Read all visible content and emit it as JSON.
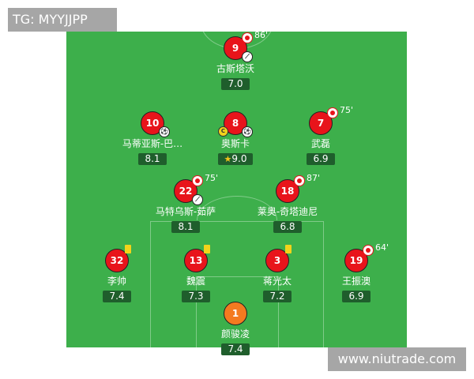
{
  "watermarks": {
    "top_left": "TG: MYYJJPP",
    "bottom_right": "www.niutrade.com"
  },
  "colors": {
    "pitch": "#3daf4b",
    "outfield": "#e8141b",
    "goalkeeper": "#f47a20",
    "rating_bg": "#1f5e2c"
  },
  "players": [
    {
      "number": "9",
      "name": "古斯塔沃",
      "rating": "7.0",
      "sub_off": "86'",
      "events": [
        "sub-off",
        "assist"
      ]
    },
    {
      "number": "10",
      "name": "马蒂亚斯-巴…",
      "rating": "8.1",
      "events": [
        "goal"
      ]
    },
    {
      "number": "8",
      "name": "奥斯卡",
      "rating": "9.0",
      "captain": "C",
      "motm": true,
      "events": [
        "goal"
      ]
    },
    {
      "number": "7",
      "name": "武磊",
      "rating": "6.9",
      "sub_off": "75'",
      "events": [
        "sub-off"
      ]
    },
    {
      "number": "22",
      "name": "马特乌斯-茹萨",
      "rating": "8.1",
      "sub_off": "75'",
      "events": [
        "sub-off",
        "assist"
      ]
    },
    {
      "number": "18",
      "name": "莱奥-奇塔迪尼",
      "rating": "6.8",
      "sub_off": "87'",
      "events": [
        "sub-off"
      ]
    },
    {
      "number": "32",
      "name": "李帅",
      "rating": "7.4",
      "events": [
        "yellow-card"
      ]
    },
    {
      "number": "13",
      "name": "魏震",
      "rating": "7.3",
      "events": [
        "yellow-card"
      ]
    },
    {
      "number": "3",
      "name": "蒋光太",
      "rating": "7.2",
      "events": [
        "yellow-card"
      ]
    },
    {
      "number": "19",
      "name": "王振澳",
      "rating": "6.9",
      "sub_off": "64'",
      "events": [
        "sub-off"
      ]
    },
    {
      "number": "1",
      "name": "颜骏凌",
      "rating": "7.4",
      "goalkeeper": true
    }
  ]
}
